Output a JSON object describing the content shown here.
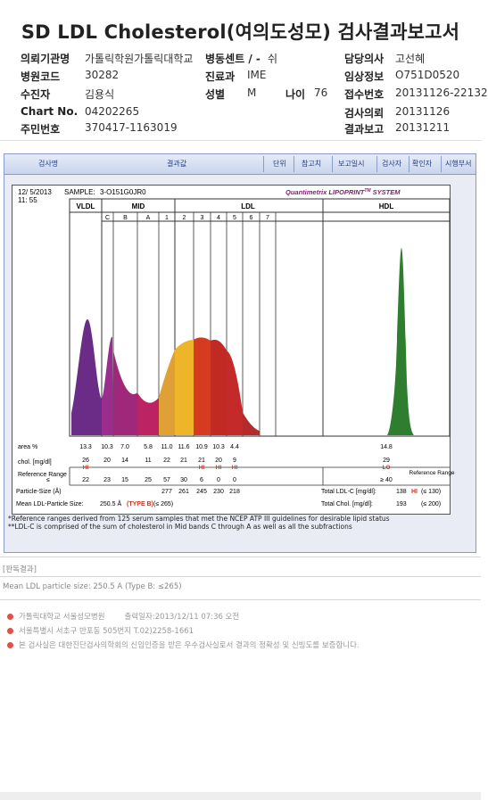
{
  "title": "SD LDL Cholesterol(여의도성모) 검사결과보고서",
  "info": {
    "institution_label": "의뢰기관명",
    "institution_value": "가톨릭학원가톨릭대학교",
    "ward_label": "병동센트 / -",
    "ward_value": "쉬",
    "doctor_label": "담당의사",
    "doctor_value": "고선혜",
    "hospital_code_label": "병원코드",
    "hospital_code_value": "30282",
    "dept_label": "진료과",
    "dept_value": "IME",
    "clinical_info_label": "임상정보",
    "clinical_info_value": "O751D0520",
    "patient_label": "수진자",
    "patient_value": "김용식",
    "sex_label": "성별",
    "sex_value": "M",
    "age_label": "나이",
    "age_value": "76",
    "receipt_label": "접수번호",
    "receipt_value": "20131126-22132",
    "chart_no_label": "Chart No.",
    "chart_no_value": "04202265",
    "request_label": "검사의뢰",
    "request_value": "20131126",
    "resident_label": "주민번호",
    "resident_value": "370417-1163019",
    "report_label": "결과보고",
    "report_value": "20131211"
  },
  "tabs": [
    "검사명",
    "결과값",
    "단위",
    "참고치",
    "보고일시",
    "검사자",
    "확인자",
    "시행부서"
  ],
  "chart_data": {
    "type": "area",
    "date": "12/ 5/2013",
    "time": "11: 55",
    "sample_label": "SAMPLE:",
    "sample_value": "3-O151G0JR0",
    "brand": "Quantimetrix LIPOPRINT",
    "brand_tm": "TM",
    "brand_tail": " SYSTEM",
    "band_groups": [
      "VLDL",
      "MID",
      "LDL",
      "HDL"
    ],
    "band_labels": [
      "C",
      "B",
      "A",
      "1",
      "2",
      "3",
      "4",
      "5",
      "6",
      "7"
    ],
    "fractions": [
      "VLDL",
      "C",
      "B",
      "A",
      "1",
      "2",
      "3",
      "4",
      "5",
      "6",
      "7",
      "HDL"
    ],
    "area_label": "area %",
    "area": [
      "13.3",
      "10.3",
      "7.0",
      "5.8",
      "11.0",
      "11.6",
      "10.9",
      "10.3",
      "4.4",
      "",
      "",
      "14.8"
    ],
    "chol_label": "chol. [mg/dl]",
    "chol": [
      "26",
      "20",
      "14",
      "11",
      "22",
      "21",
      "21",
      "20",
      "9",
      "",
      "",
      "29"
    ],
    "flags": [
      "HI",
      "",
      "",
      "",
      "",
      "",
      "HI",
      "HI",
      "HI",
      "",
      "",
      "LO"
    ],
    "ref_label": "Reference Range",
    "ref_left_sign": "≤",
    "ref": [
      "22",
      "23",
      "15",
      "25",
      "57",
      "30",
      "6",
      "0",
      "0",
      "",
      "",
      "≥ 40"
    ],
    "particle_label": "Particle-Size (Å)",
    "particle": [
      "",
      "",
      "",
      "",
      "277",
      "261",
      "245",
      "230",
      "218",
      "",
      "",
      ""
    ],
    "mean_label": "Mean LDL-Particle Size:",
    "mean_value": "250.5 Å",
    "mean_type": "(TYPE B)",
    "mean_ref": "(≤ 265)",
    "total_ldl_label": "Total LDL-C [mg/dl]:",
    "total_ldl_value": "138",
    "total_ldl_flag": "HI",
    "total_ldl_ref": "(≤ 130)",
    "total_chol_label": "Total Chol. [mg/dl]:",
    "total_chol_value": "193",
    "total_chol_ref": "(≤ 200)",
    "colors": [
      "#6a2c86",
      "#9b2d8f",
      "#a0287a",
      "#bb2363",
      "#e1a035",
      "#eeb42a",
      "#d63a1f",
      "#c12a22",
      "#c52a2a",
      "#b52b2b",
      "#b52b2b",
      "#2f7d2f"
    ]
  },
  "footnote1": "*Reference ranges derived from 125 serum samples that met the NCEP ATP III guidelines for desirable lipid status",
  "footnote2": "**LDL-C is comprised of the sum of cholesterol in Mid bands C through A as well as all the subfractions",
  "section_header": "[판독결과]",
  "section_body": "Mean LDL particle size: 250.5 A (Type B: ≤265)",
  "footer": {
    "line1_a": "가톨릭대학교 서울성모병원",
    "line1_b": "출력일자:2013/12/11 07:36 오전",
    "line2": "서울특별시 서초구 반포동 505번지 T.02)2258-1661",
    "line3": "본 검사실은 대한진단검사의학회의 신임인증을 받은 우수검사실로서 결과의 정확성 및 신빙도를 보증합니다."
  }
}
